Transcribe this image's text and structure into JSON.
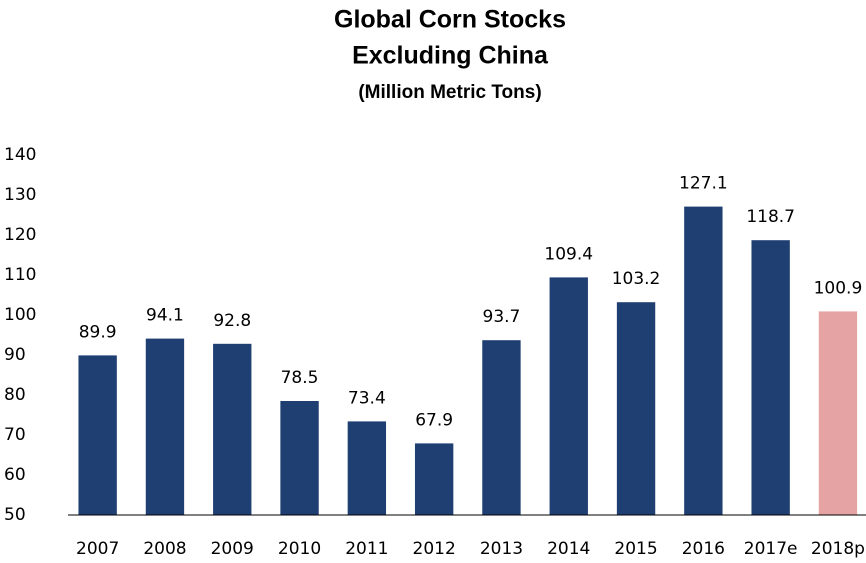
{
  "chart_data": {
    "type": "bar",
    "title": [
      "Global Corn Stocks",
      "Excluding China"
    ],
    "subtitle": "(Million Metric Tons)",
    "categories": [
      "2007",
      "2008",
      "2009",
      "2010",
      "2011",
      "2012",
      "2013",
      "2014",
      "2015",
      "2016",
      "2017e",
      "2018p"
    ],
    "values": [
      89.9,
      94.1,
      92.8,
      78.5,
      73.4,
      67.9,
      93.7,
      109.4,
      103.2,
      127.1,
      118.7,
      100.9
    ],
    "colors": [
      "#1f3f73",
      "#1f3f73",
      "#1f3f73",
      "#1f3f73",
      "#1f3f73",
      "#1f3f73",
      "#1f3f73",
      "#1f3f73",
      "#1f3f73",
      "#1f3f73",
      "#1f3f73",
      "#e6a3a3"
    ],
    "ylim": [
      50,
      140
    ],
    "yticks": [
      50,
      60,
      70,
      80,
      90,
      100,
      110,
      120,
      130,
      140
    ],
    "grid": false
  }
}
